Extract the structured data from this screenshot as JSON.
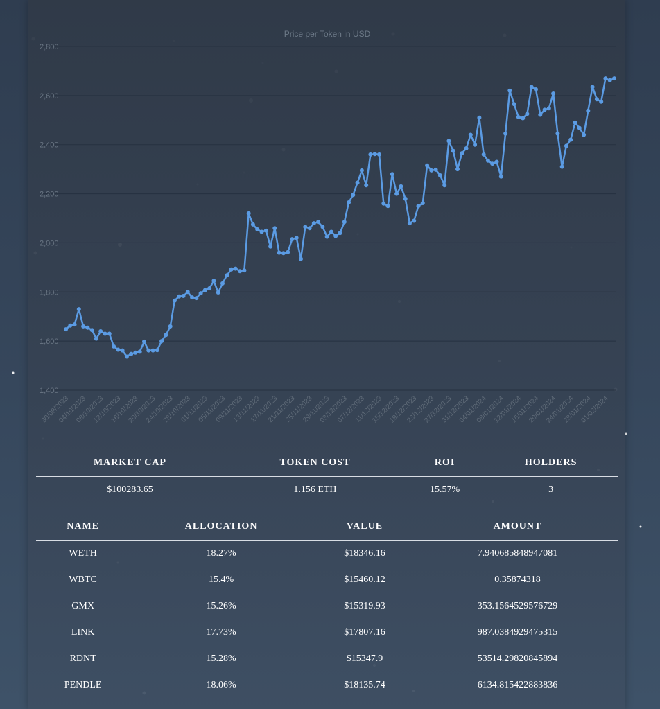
{
  "chart_data": {
    "type": "line",
    "title": "Price per Token in USD",
    "ylim": [
      1400,
      2800
    ],
    "yticks": [
      1400,
      1600,
      1800,
      2000,
      2200,
      2400,
      2600,
      2800
    ],
    "ytick_labels": [
      "1,400",
      "1,600",
      "1,800",
      "2,000",
      "2,200",
      "2,400",
      "2,600",
      "2,800"
    ],
    "grid": "horizontal",
    "x_start": "30/09/2023",
    "xtick_labels": [
      "30/09/2023",
      "04/10/2023",
      "08/10/2023",
      "12/10/2023",
      "16/10/2023",
      "20/10/2023",
      "24/10/2023",
      "28/10/2023",
      "01/11/2023",
      "05/11/2023",
      "09/11/2023",
      "13/11/2023",
      "17/11/2023",
      "21/11/2023",
      "25/11/2023",
      "29/11/2023",
      "03/12/2023",
      "07/12/2023",
      "11/12/2023",
      "15/12/2023",
      "19/12/2023",
      "23/12/2023",
      "27/12/2023",
      "31/12/2023",
      "04/01/2024",
      "08/01/2024",
      "12/01/2024",
      "16/01/2024",
      "20/01/2024",
      "24/01/2024",
      "28/01/2024",
      "01/02/2024"
    ],
    "color": "#5b9be3",
    "series": [
      {
        "values": [
          1648,
          1663,
          1668,
          1730,
          1660,
          1655,
          1645,
          1610,
          1640,
          1630,
          1630,
          1578,
          1565,
          1562,
          1537,
          1548,
          1553,
          1557,
          1598,
          1562,
          1562,
          1563,
          1600,
          1625,
          1660,
          1765,
          1782,
          1784,
          1800,
          1778,
          1775,
          1795,
          1808,
          1815,
          1845,
          1798,
          1835,
          1868,
          1892,
          1895,
          1885,
          1888,
          2120,
          2075,
          2055,
          2045,
          2050,
          1985,
          2060,
          1960,
          1958,
          1962,
          2015,
          2020,
          1935,
          2065,
          2060,
          2080,
          2085,
          2065,
          2025,
          2045,
          2028,
          2040,
          2085,
          2165,
          2195,
          2245,
          2295,
          2235,
          2360,
          2362,
          2360,
          2160,
          2150,
          2280,
          2200,
          2230,
          2180,
          2080,
          2090,
          2150,
          2162,
          2315,
          2295,
          2298,
          2275,
          2235,
          2415,
          2375,
          2300,
          2365,
          2385,
          2440,
          2400,
          2510,
          2360,
          2335,
          2322,
          2330,
          2270,
          2445,
          2620,
          2565,
          2512,
          2508,
          2525,
          2635,
          2625,
          2522,
          2542,
          2548,
          2608,
          2445,
          2310,
          2395,
          2420,
          2490,
          2468,
          2440,
          2538,
          2635,
          2585,
          2575,
          2670,
          2662,
          2670
        ]
      }
    ]
  },
  "summary": {
    "headers": [
      "MARKET CAP",
      "TOKEN COST",
      "ROI",
      "HOLDERS"
    ],
    "values": [
      "$100283.65",
      "1.156 ETH",
      "15.57%",
      "3"
    ]
  },
  "holdings": {
    "headers": [
      "NAME",
      "ALLOCATION",
      "VALUE",
      "AMOUNT"
    ],
    "rows": [
      [
        "WETH",
        "18.27%",
        "$18346.16",
        "7.940685848947081"
      ],
      [
        "WBTC",
        "15.4%",
        "$15460.12",
        "0.35874318"
      ],
      [
        "GMX",
        "15.26%",
        "$15319.93",
        "353.1564529576729"
      ],
      [
        "LINK",
        "17.73%",
        "$17807.16",
        "987.0384929475315"
      ],
      [
        "RDNT",
        "15.28%",
        "$15347.9",
        "53514.29820845894"
      ],
      [
        "PENDLE",
        "18.06%",
        "$18135.74",
        "6134.815422883836"
      ]
    ]
  }
}
